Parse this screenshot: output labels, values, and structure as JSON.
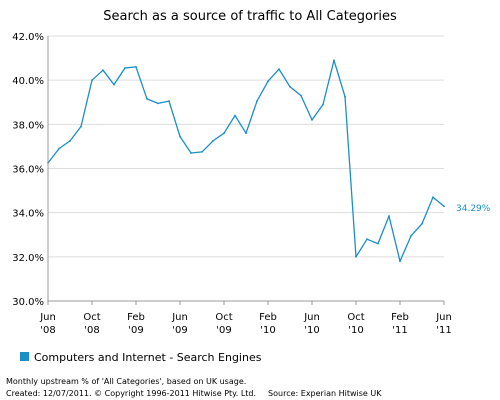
{
  "chart_data": {
    "type": "line",
    "title": "Search as a source of traffic to All Categories",
    "xlabel": "",
    "ylabel": "",
    "ylim": [
      30,
      42
    ],
    "yticks": [
      "30.0%",
      "32.0%",
      "34.0%",
      "36.0%",
      "38.0%",
      "40.0%",
      "42.0%"
    ],
    "ytick_values": [
      30,
      32,
      34,
      36,
      38,
      40,
      42
    ],
    "x_tick_labels": [
      {
        "month": "Jun",
        "year": "'08"
      },
      {
        "month": "Oct",
        "year": "'08"
      },
      {
        "month": "Feb",
        "year": "'09"
      },
      {
        "month": "Jun",
        "year": "'09"
      },
      {
        "month": "Oct",
        "year": "'09"
      },
      {
        "month": "Feb",
        "year": "'10"
      },
      {
        "month": "Jun",
        "year": "'10"
      },
      {
        "month": "Oct",
        "year": "'10"
      },
      {
        "month": "Feb",
        "year": "'11"
      },
      {
        "month": "Jun",
        "year": "'11"
      }
    ],
    "grid": true,
    "legend": "bottom-left",
    "end_label": "34.29%",
    "series": [
      {
        "name": "Computers and Internet - Search Engines",
        "color": "#1a8fc8",
        "x": [
          "Jun 2008",
          "Jul 2008",
          "Aug 2008",
          "Sep 2008",
          "Oct 2008",
          "Nov 2008",
          "Dec 2008",
          "Jan 2009",
          "Feb 2009",
          "Mar 2009",
          "Apr 2009",
          "May 2009",
          "Jun 2009",
          "Jul 2009",
          "Aug 2009",
          "Sep 2009",
          "Oct 2009",
          "Nov 2009",
          "Dec 2009",
          "Jan 2010",
          "Feb 2010",
          "Mar 2010",
          "Apr 2010",
          "May 2010",
          "Jun 2010",
          "Jul 2010",
          "Aug 2010",
          "Sep 2010",
          "Oct 2010",
          "Nov 2010",
          "Dec 2010",
          "Jan 2011",
          "Feb 2011",
          "Mar 2011",
          "Apr 2011",
          "May 2011",
          "Jun 2011"
        ],
        "values": [
          36.25,
          36.9,
          37.25,
          37.9,
          40.0,
          40.45,
          39.8,
          40.55,
          40.6,
          39.15,
          38.95,
          39.05,
          37.45,
          36.7,
          36.75,
          37.25,
          37.6,
          38.4,
          37.6,
          39.05,
          39.95,
          40.5,
          39.7,
          39.3,
          38.2,
          38.9,
          40.9,
          39.25,
          32.0,
          32.8,
          32.6,
          33.85,
          31.8,
          32.95,
          33.5,
          34.7,
          34.29
        ]
      }
    ]
  },
  "footer": {
    "line1": "Monthly upstream % of 'All Categories', based on UK usage.",
    "line2": "Created: 12/07/2011. © Copyright 1996-2011 Hitwise Pty. Ltd.",
    "source": "Source: Experian Hitwise UK"
  }
}
